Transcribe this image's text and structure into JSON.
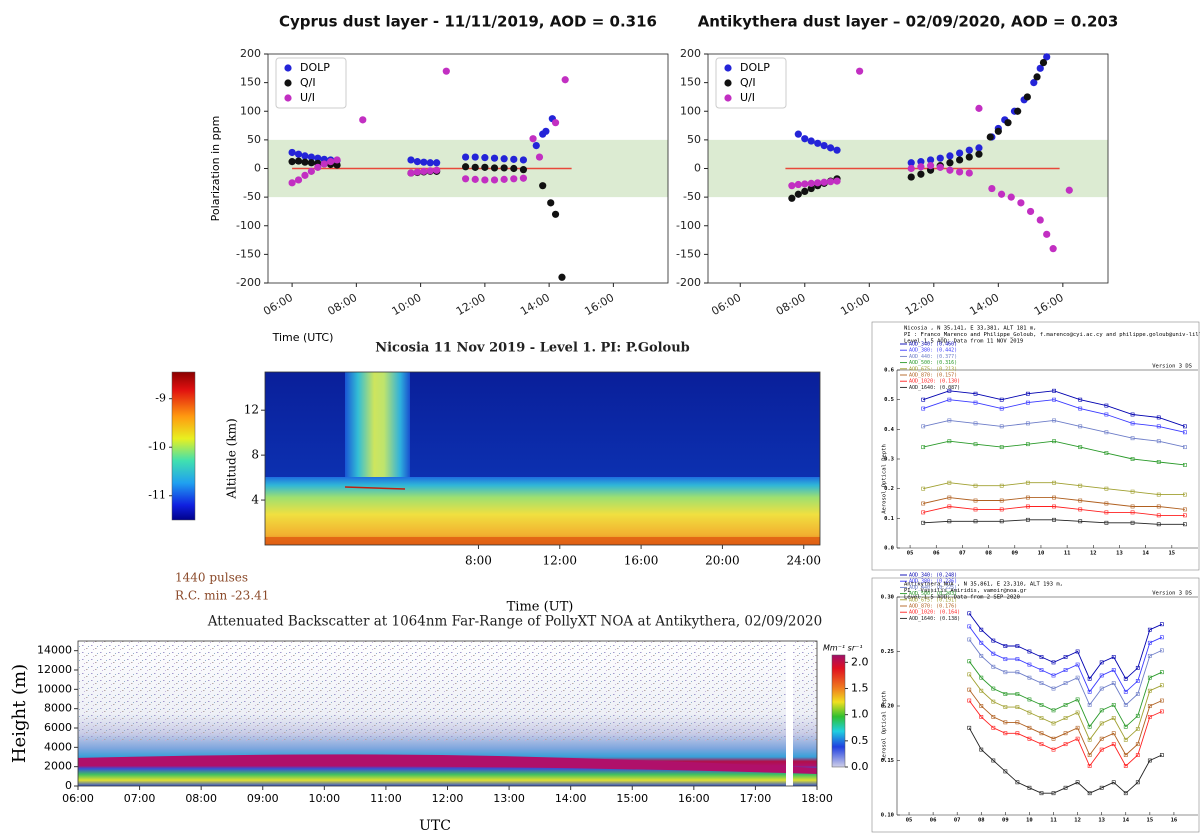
{
  "chart_data": [
    {
      "type": "scatter",
      "title": "Cyprus dust layer - 11/11/2019, AOD = 0.316",
      "xlabel": "Time (UTC)",
      "ylabel": "Polarization in ppm",
      "xlim": [
        5.25,
        17.7
      ],
      "ylim": [
        -200,
        200
      ],
      "xticks": [
        {
          "value": 6,
          "label": "06:00"
        },
        {
          "value": 8,
          "label": "08:00"
        },
        {
          "value": 10,
          "label": "10:00"
        },
        {
          "value": 12,
          "label": "12:00"
        },
        {
          "value": 14,
          "label": "14:00"
        },
        {
          "value": 16,
          "label": "16:00"
        }
      ],
      "yticks": [
        -200,
        -150,
        -100,
        -50,
        0,
        50,
        100,
        150,
        200
      ],
      "band": [
        -50,
        50
      ],
      "band_color": "#dcebd2",
      "reference_line": {
        "y": 0,
        "from": 6.0,
        "to": 14.7,
        "color": "#e8483a"
      },
      "legend": "upper left",
      "series": [
        {
          "name": "DOLP",
          "color": "#2424d8",
          "x": [
            6.0,
            6.2,
            6.4,
            6.6,
            6.8,
            7.0,
            7.2,
            7.4,
            9.7,
            9.9,
            10.1,
            10.3,
            10.5,
            11.4,
            11.7,
            12.0,
            12.3,
            12.6,
            12.9,
            13.2,
            13.6,
            13.8,
            13.9,
            14.1
          ],
          "values": [
            28,
            25,
            22,
            20,
            18,
            16,
            15,
            14,
            15,
            12,
            11,
            10,
            10,
            20,
            20,
            19,
            18,
            17,
            16,
            15,
            40,
            60,
            65,
            87
          ]
        },
        {
          "name": "Q/I",
          "color": "#111111",
          "x": [
            6.0,
            6.2,
            6.4,
            6.6,
            6.8,
            7.0,
            7.2,
            7.4,
            9.7,
            9.9,
            10.1,
            10.3,
            10.5,
            11.4,
            11.7,
            12.0,
            12.3,
            12.6,
            12.9,
            13.2,
            13.8,
            14.05,
            14.2,
            14.4
          ],
          "values": [
            12,
            13,
            11,
            10,
            9,
            8,
            7,
            6,
            -8,
            -7,
            -6,
            -5,
            -5,
            3,
            2,
            2,
            1,
            1,
            0,
            -2,
            -30,
            -60,
            -80,
            -190
          ]
        },
        {
          "name": "U/I",
          "color": "#c22fc2",
          "x": [
            6.0,
            6.2,
            6.4,
            6.6,
            6.8,
            7.0,
            7.2,
            7.4,
            8.2,
            9.7,
            9.9,
            10.1,
            10.3,
            10.5,
            10.8,
            11.4,
            11.7,
            12.0,
            12.3,
            12.6,
            12.9,
            13.2,
            13.5,
            13.7,
            14.2,
            14.5
          ],
          "values": [
            -25,
            -20,
            -12,
            -5,
            2,
            8,
            12,
            15,
            85,
            -8,
            -6,
            -5,
            -4,
            -3,
            170,
            -18,
            -19,
            -20,
            -20,
            -19,
            -18,
            -17,
            52,
            20,
            80,
            155
          ]
        }
      ]
    },
    {
      "type": "scatter",
      "title": "Antikythera dust layer – 02/09/2020, AOD = 0.203",
      "xlim": [
        5.0,
        17.4
      ],
      "ylim": [
        -200,
        200
      ],
      "xticks": [
        {
          "value": 6,
          "label": "06:00"
        },
        {
          "value": 8,
          "label": "08:00"
        },
        {
          "value": 10,
          "label": "10:00"
        },
        {
          "value": 12,
          "label": "12:00"
        },
        {
          "value": 14,
          "label": "14:00"
        },
        {
          "value": 16,
          "label": "16:00"
        }
      ],
      "yticks": [
        -200,
        -150,
        -100,
        -50,
        0,
        50,
        100,
        150,
        200
      ],
      "band": [
        -50,
        50
      ],
      "band_color": "#dcebd2",
      "reference_line": {
        "y": 0,
        "from": 7.4,
        "to": 15.9,
        "color": "#e8483a"
      },
      "legend": "upper left",
      "series": [
        {
          "name": "DOLP",
          "color": "#2424d8",
          "x": [
            7.8,
            8.0,
            8.2,
            8.4,
            8.6,
            8.8,
            9.0,
            11.3,
            11.6,
            11.9,
            12.2,
            12.5,
            12.8,
            13.1,
            13.4,
            13.8,
            14.0,
            14.2,
            14.5,
            14.8,
            15.1,
            15.3,
            15.5
          ],
          "values": [
            60,
            52,
            48,
            44,
            40,
            36,
            32,
            10,
            12,
            15,
            18,
            22,
            27,
            32,
            36,
            55,
            70,
            85,
            100,
            120,
            150,
            175,
            195
          ]
        },
        {
          "name": "Q/I",
          "color": "#111111",
          "x": [
            7.6,
            7.8,
            8.0,
            8.2,
            8.4,
            8.6,
            8.8,
            9.0,
            11.3,
            11.6,
            11.9,
            12.2,
            12.5,
            12.8,
            13.1,
            13.4,
            13.75,
            14.0,
            14.3,
            14.6,
            14.9,
            15.2,
            15.4
          ],
          "values": [
            -52,
            -45,
            -40,
            -35,
            -30,
            -26,
            -22,
            -18,
            -15,
            -10,
            -3,
            5,
            10,
            15,
            20,
            25,
            55,
            65,
            80,
            100,
            125,
            160,
            185
          ]
        },
        {
          "name": "U/I",
          "color": "#c22fc2",
          "x": [
            7.6,
            7.8,
            8.0,
            8.2,
            8.4,
            8.6,
            8.8,
            9.0,
            9.7,
            11.3,
            11.6,
            11.9,
            12.2,
            12.5,
            12.8,
            13.1,
            13.4,
            13.8,
            14.1,
            14.4,
            14.7,
            15.0,
            15.3,
            15.5,
            15.7,
            16.2
          ],
          "values": [
            -30,
            -28,
            -27,
            -26,
            -25,
            -24,
            -23,
            -22,
            170,
            0,
            3,
            5,
            2,
            -3,
            -6,
            -8,
            105,
            -35,
            -45,
            -50,
            -60,
            -75,
            -90,
            -115,
            -140,
            -38
          ]
        }
      ]
    },
    {
      "type": "heatmap",
      "title": "Nicosia    11 Nov 2019 - Level 1. PI: P.Goloub",
      "xlabel": "Time (UT)",
      "ylabel": "Altitude (km)",
      "xlim": [
        -2.5,
        24.8
      ],
      "ylim": [
        0,
        15.4
      ],
      "xticks": [
        {
          "value": 8,
          "label": "8:00"
        },
        {
          "value": 12,
          "label": "12:00"
        },
        {
          "value": 16,
          "label": "16:00"
        },
        {
          "value": 20,
          "label": "20:00"
        },
        {
          "value": 24,
          "label": "24:00"
        }
      ],
      "yticks": [
        4,
        8,
        12
      ],
      "colorbar": {
        "lim": [
          -11.5,
          -8.45
        ],
        "ticks": [
          -11,
          -10,
          -9
        ]
      },
      "annotations": [
        "1440 pulses",
        "R.C. min -23.41"
      ]
    },
    {
      "type": "heatmap",
      "title": "Attenuated Backscatter at 1064nm Far-Range of PollyXT NOA at Antikythera, 02/09/2020",
      "xlabel": "UTC",
      "ylabel": "Height (m)",
      "xlim": [
        6,
        18
      ],
      "ylim": [
        0,
        15000
      ],
      "xticks": [
        {
          "value": 6,
          "label": "06:00"
        },
        {
          "value": 7,
          "label": "07:00"
        },
        {
          "value": 8,
          "label": "08:00"
        },
        {
          "value": 9,
          "label": "09:00"
        },
        {
          "value": 10,
          "label": "10:00"
        },
        {
          "value": 11,
          "label": "11:00"
        },
        {
          "value": 12,
          "label": "12:00"
        },
        {
          "value": 13,
          "label": "13:00"
        },
        {
          "value": 14,
          "label": "14:00"
        },
        {
          "value": 15,
          "label": "15:00"
        },
        {
          "value": 16,
          "label": "16:00"
        },
        {
          "value": 17,
          "label": "17:00"
        },
        {
          "value": 18,
          "label": "18:00"
        }
      ],
      "yticks": [
        0,
        2000,
        4000,
        6000,
        8000,
        10000,
        12000,
        14000
      ],
      "colorbar": {
        "label": "Mm⁻¹ sr⁻¹",
        "lim": [
          0,
          2.14
        ],
        "ticks": [
          {
            "value": 0,
            "label": "0.0"
          },
          0.5,
          {
            "value": 1,
            "label": "1.0"
          },
          1.5,
          {
            "value": 2,
            "label": "2.0"
          }
        ]
      }
    },
    {
      "type": "line",
      "header": [
        "Nicosia , N 35,141, E 33,381, ALT 181 m,",
        "PI : Franco_Marenco and Philippe_Goloub, f.marenco@cyi.ac.cy and philippe.goloub@univ-lille.fr",
        "Level 1.5 AOD; Data from 11 NOV 2019"
      ],
      "version": "Version 3 DS",
      "ylabel": "Aerosol Optical Depth",
      "xlim": [
        4.5,
        16
      ],
      "ylim": [
        0,
        0.6
      ],
      "xticks": [
        {
          "value": 5,
          "label": "05"
        },
        {
          "value": 6,
          "label": "06"
        },
        {
          "value": 7,
          "label": "07"
        },
        {
          "value": 8,
          "label": "08"
        },
        {
          "value": 9,
          "label": "09"
        },
        10,
        11,
        12,
        13,
        14,
        15
      ],
      "yticks": [
        {
          "value": 0,
          "label": "0.0"
        },
        0.1,
        0.2,
        0.3,
        0.4,
        0.5,
        0.6
      ],
      "x": [
        5.5,
        6.5,
        7.5,
        8.5,
        9.5,
        10.5,
        11.5,
        12.5,
        13.5,
        14.5,
        15.5
      ],
      "series": [
        {
          "name": "AOD_340: (0.460)",
          "color": "#0000b0",
          "values": [
            0.5,
            0.53,
            0.52,
            0.5,
            0.52,
            0.53,
            0.5,
            0.48,
            0.45,
            0.44,
            0.41
          ]
        },
        {
          "name": "AOD_380: (0.442)",
          "color": "#3a3aff",
          "values": [
            0.47,
            0.5,
            0.49,
            0.47,
            0.49,
            0.5,
            0.47,
            0.45,
            0.42,
            0.41,
            0.39
          ]
        },
        {
          "name": "AOD_440: (0.377)",
          "color": "#6c7cc8",
          "values": [
            0.41,
            0.43,
            0.42,
            0.41,
            0.42,
            0.43,
            0.41,
            0.39,
            0.37,
            0.36,
            0.34
          ]
        },
        {
          "name": "AOD_500: (0.316)",
          "color": "#2a9a2a",
          "values": [
            0.34,
            0.36,
            0.35,
            0.34,
            0.35,
            0.36,
            0.34,
            0.32,
            0.3,
            0.29,
            0.28
          ]
        },
        {
          "name": "AOD_675: (0.213)",
          "color": "#a0a030",
          "values": [
            0.2,
            0.22,
            0.21,
            0.21,
            0.22,
            0.22,
            0.21,
            0.2,
            0.19,
            0.18,
            0.18
          ]
        },
        {
          "name": "AOD_870: (0.157)",
          "color": "#b06020",
          "values": [
            0.15,
            0.17,
            0.16,
            0.16,
            0.17,
            0.17,
            0.16,
            0.15,
            0.14,
            0.14,
            0.13
          ]
        },
        {
          "name": "AOD_1020: (0.130)",
          "color": "#ff2020",
          "values": [
            0.12,
            0.14,
            0.13,
            0.13,
            0.14,
            0.14,
            0.13,
            0.12,
            0.12,
            0.11,
            0.11
          ]
        },
        {
          "name": "AOD_1640: (0.087)",
          "color": "#202020",
          "values": [
            0.085,
            0.09,
            0.09,
            0.09,
            0.095,
            0.095,
            0.09,
            0.085,
            0.085,
            0.08,
            0.08
          ]
        }
      ]
    },
    {
      "type": "line",
      "header": [
        "Antikythera_NOA , N 35,861, E 23,310, ALT 193 m,",
        "PI : Vassilis_Amiridis, vamoir@noa.gr",
        "Level 1.5 AOD; Data from 2 SEP 2020"
      ],
      "version": "Version 3 DS",
      "ylabel": "Aerosol Optical Depth",
      "xlim": [
        4.5,
        17
      ],
      "ylim": [
        0.1,
        0.3
      ],
      "xticks": [
        {
          "value": 5,
          "label": "05"
        },
        {
          "value": 6,
          "label": "06"
        },
        {
          "value": 7,
          "label": "07"
        },
        {
          "value": 8,
          "label": "08"
        },
        {
          "value": 9,
          "label": "09"
        },
        10,
        11,
        12,
        13,
        14,
        15,
        16
      ],
      "yticks": [
        {
          "value": 0.1,
          "label": "0.10"
        },
        0.15,
        {
          "value": 0.2,
          "label": "0.20"
        },
        0.25,
        {
          "value": 0.3,
          "label": "0.30"
        }
      ],
      "x": [
        7.5,
        8.0,
        8.5,
        9.0,
        9.5,
        10.0,
        10.5,
        11.0,
        11.5,
        12.0,
        12.5,
        13.0,
        13.5,
        14.0,
        14.5,
        15.0,
        15.5
      ],
      "series": [
        {
          "name": "AOD_340: (0.248)",
          "color": "#0000b0",
          "values": [
            0.285,
            0.27,
            0.26,
            0.255,
            0.255,
            0.25,
            0.245,
            0.24,
            0.245,
            0.25,
            0.225,
            0.24,
            0.245,
            0.225,
            0.235,
            0.27,
            0.275
          ]
        },
        {
          "name": "AOD_380: (0.236)",
          "color": "#3a3aff",
          "values": [
            0.273,
            0.258,
            0.248,
            0.243,
            0.243,
            0.238,
            0.233,
            0.228,
            0.233,
            0.238,
            0.213,
            0.228,
            0.233,
            0.213,
            0.223,
            0.258,
            0.263
          ]
        },
        {
          "name": "AOD_440: (0.225)",
          "color": "#6c7cc8",
          "values": [
            0.261,
            0.246,
            0.236,
            0.231,
            0.231,
            0.226,
            0.221,
            0.216,
            0.221,
            0.226,
            0.201,
            0.216,
            0.221,
            0.201,
            0.211,
            0.246,
            0.251
          ]
        },
        {
          "name": "AOD_500: (0.203)",
          "color": "#2a9a2a",
          "values": [
            0.241,
            0.226,
            0.216,
            0.211,
            0.211,
            0.206,
            0.201,
            0.196,
            0.201,
            0.206,
            0.181,
            0.196,
            0.201,
            0.181,
            0.191,
            0.226,
            0.231
          ]
        },
        {
          "name": "AOD_675: (0.191)",
          "color": "#a0a030",
          "values": [
            0.229,
            0.214,
            0.204,
            0.199,
            0.199,
            0.194,
            0.189,
            0.184,
            0.189,
            0.194,
            0.169,
            0.184,
            0.189,
            0.169,
            0.179,
            0.214,
            0.219
          ]
        },
        {
          "name": "AOD_870: (0.176)",
          "color": "#b06020",
          "values": [
            0.215,
            0.2,
            0.19,
            0.185,
            0.185,
            0.18,
            0.175,
            0.17,
            0.175,
            0.18,
            0.155,
            0.17,
            0.175,
            0.155,
            0.165,
            0.2,
            0.205
          ]
        },
        {
          "name": "AOD_1020: (0.164)",
          "color": "#ff2020",
          "values": [
            0.205,
            0.19,
            0.18,
            0.175,
            0.175,
            0.17,
            0.165,
            0.16,
            0.165,
            0.17,
            0.145,
            0.16,
            0.165,
            0.145,
            0.155,
            0.19,
            0.195
          ]
        },
        {
          "name": "AOD_1640: (0.138)",
          "color": "#202020",
          "values": [
            0.18,
            0.16,
            0.15,
            0.14,
            0.13,
            0.125,
            0.12,
            0.12,
            0.125,
            0.13,
            0.12,
            0.125,
            0.13,
            0.12,
            0.13,
            0.15,
            0.155
          ]
        }
      ]
    }
  ]
}
